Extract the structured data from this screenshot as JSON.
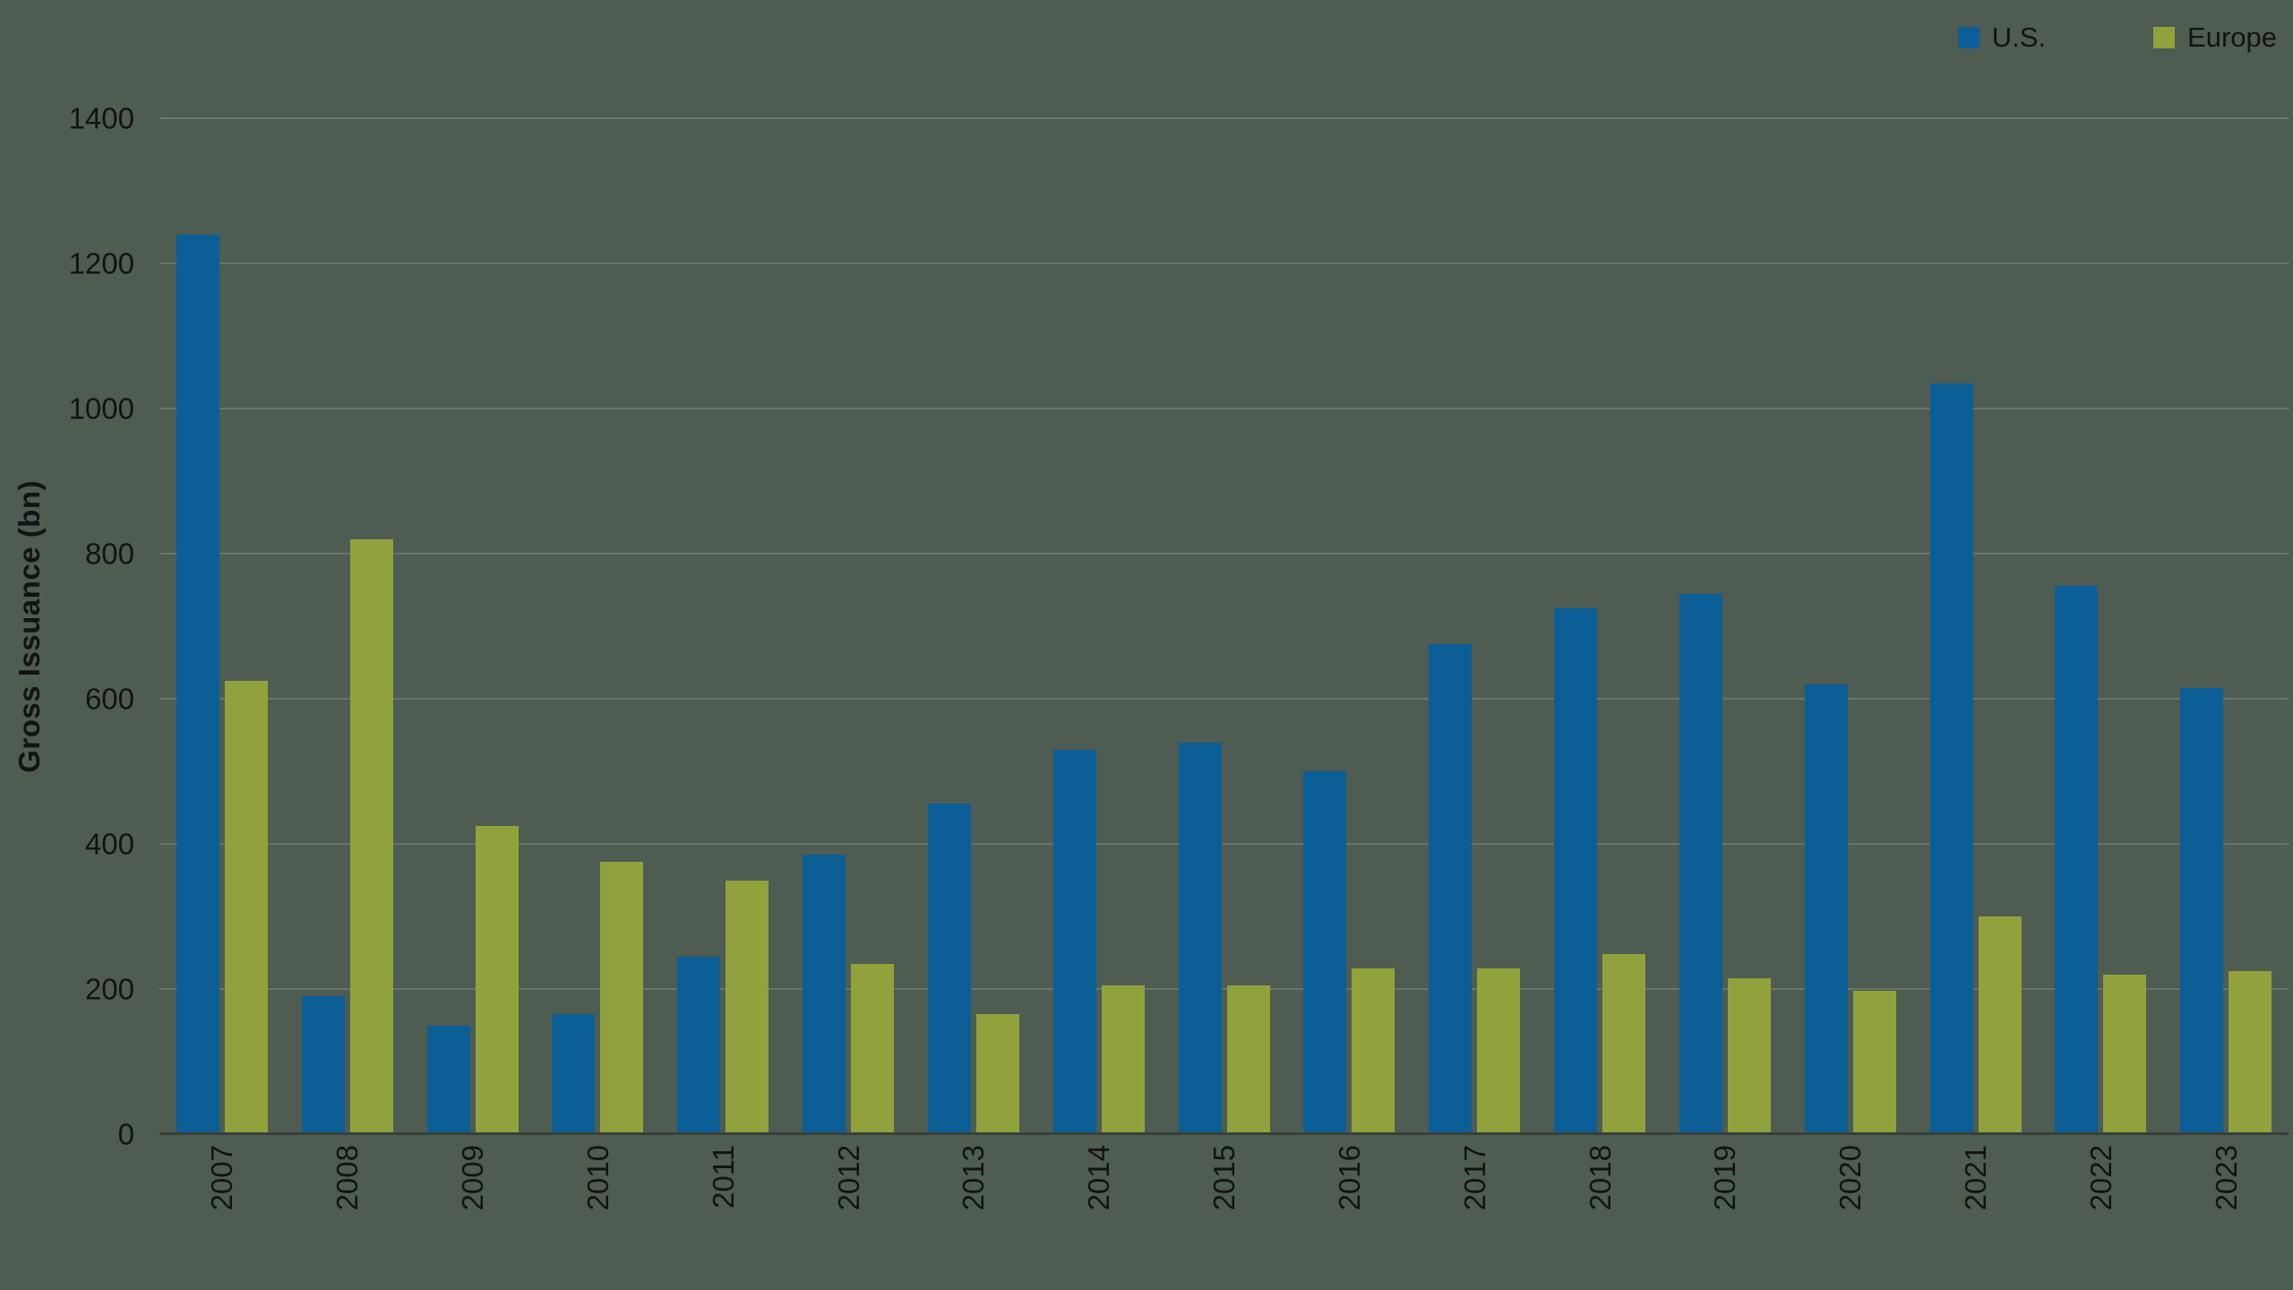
{
  "chart_data": {
    "type": "bar",
    "title": "",
    "xlabel": "",
    "ylabel": "Gross Issuance (bn)",
    "ylim": [
      0,
      1400
    ],
    "yticks": [
      0,
      200,
      400,
      600,
      800,
      1000,
      1200,
      1400
    ],
    "grid": true,
    "legend_position": "top-right",
    "categories": [
      "2007",
      "2008",
      "2009",
      "2010",
      "2011",
      "2012",
      "2013",
      "2014",
      "2015",
      "2016",
      "2017",
      "2018",
      "2019",
      "2020",
      "2021",
      "2022",
      "2023"
    ],
    "series": [
      {
        "name": "U.S.",
        "color": "#0b5e96",
        "values": [
          1240,
          190,
          150,
          165,
          245,
          385,
          455,
          530,
          540,
          500,
          675,
          725,
          745,
          620,
          1035,
          755,
          615
        ]
      },
      {
        "name": "Europe",
        "color": "#91a23d",
        "values": [
          625,
          820,
          425,
          375,
          350,
          235,
          165,
          205,
          205,
          228,
          228,
          248,
          215,
          198,
          300,
          220,
          225
        ]
      }
    ]
  },
  "colors": {
    "background": "#4e5c52",
    "grid": "#6b7468",
    "axis": "#39403a",
    "text": "#131313",
    "us": "#0b5e96",
    "europe": "#91a23d"
  }
}
